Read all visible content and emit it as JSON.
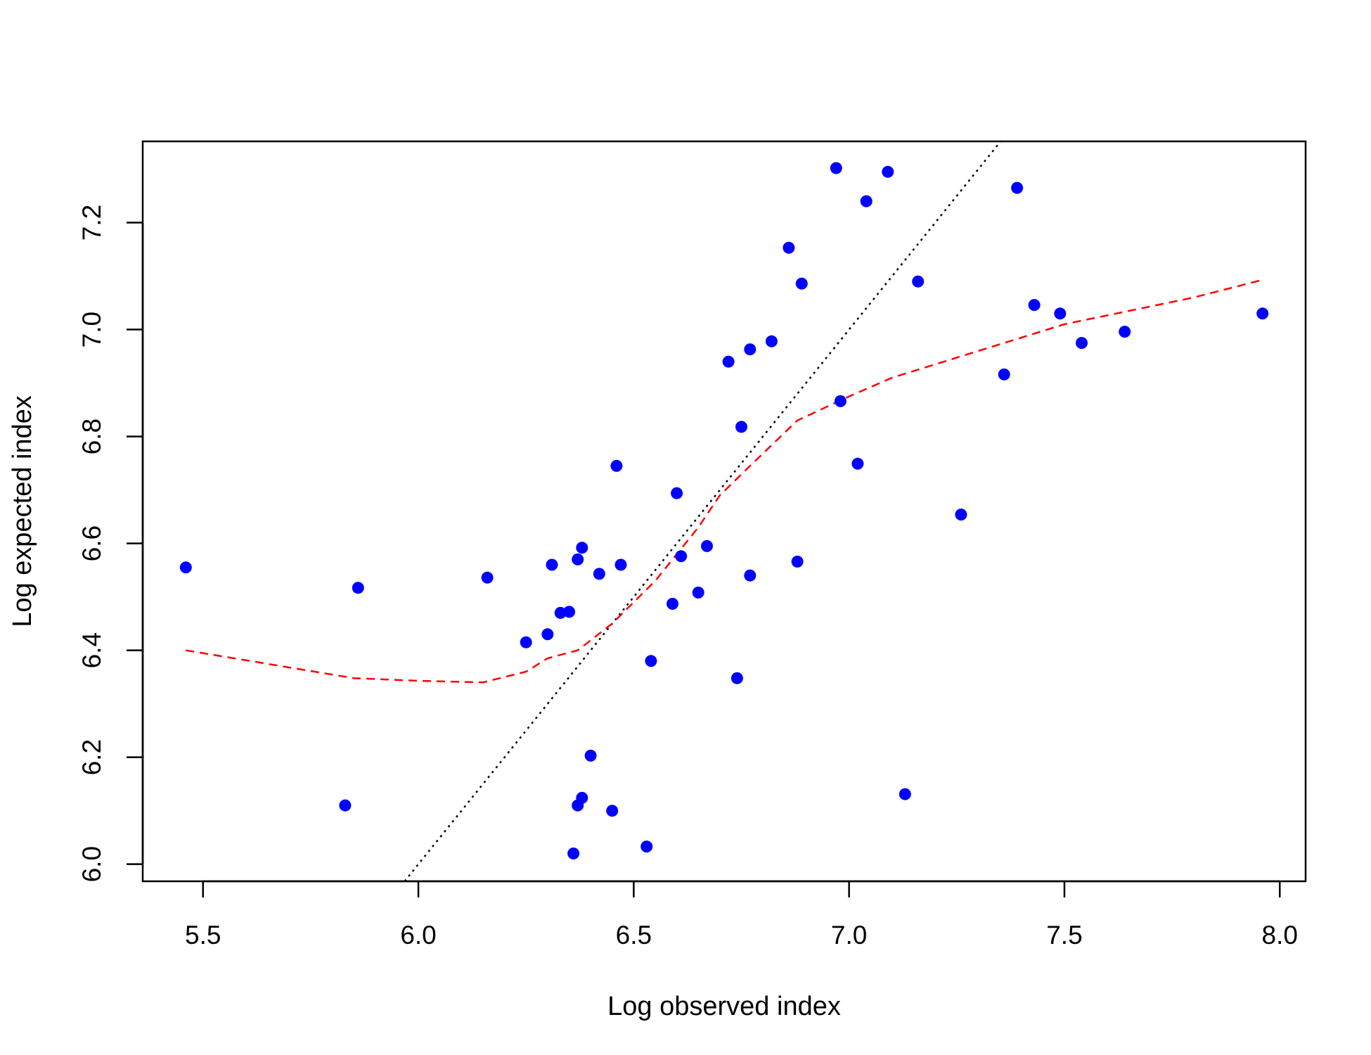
{
  "chart_data": {
    "type": "scatter",
    "title": "",
    "xlabel": "Log observed index",
    "ylabel": "Log expected index",
    "xlim": [
      5.36,
      8.06
    ],
    "ylim": [
      5.968,
      7.352
    ],
    "x_ticks": [
      5.5,
      6.0,
      6.5,
      7.0,
      7.5,
      8.0
    ],
    "x_tick_labels": [
      "5.5",
      "6.0",
      "6.5",
      "7.0",
      "7.5",
      "8.0"
    ],
    "y_ticks": [
      6.0,
      6.2,
      6.4,
      6.6,
      6.8,
      7.0,
      7.2
    ],
    "y_tick_labels": [
      "6.0",
      "6.2",
      "6.4",
      "6.6",
      "6.8",
      "7.0",
      "7.2"
    ],
    "grid": false,
    "colors": {
      "points": "#0000ff",
      "smooth": "#ff0000",
      "reference": "#000000"
    },
    "series": [
      {
        "kind": "points",
        "points": [
          [
            5.46,
            6.555
          ],
          [
            5.83,
            6.11
          ],
          [
            5.86,
            6.517
          ],
          [
            6.16,
            6.536
          ],
          [
            6.25,
            6.415
          ],
          [
            6.3,
            6.43
          ],
          [
            6.31,
            6.56
          ],
          [
            6.33,
            6.47
          ],
          [
            6.35,
            6.472
          ],
          [
            6.36,
            6.02
          ],
          [
            6.37,
            6.11
          ],
          [
            6.37,
            6.57
          ],
          [
            6.38,
            6.124
          ],
          [
            6.38,
            6.592
          ],
          [
            6.4,
            6.203
          ],
          [
            6.42,
            6.543
          ],
          [
            6.45,
            6.1
          ],
          [
            6.46,
            6.745
          ],
          [
            6.47,
            6.56
          ],
          [
            6.53,
            6.033
          ],
          [
            6.54,
            6.38
          ],
          [
            6.59,
            6.487
          ],
          [
            6.6,
            6.694
          ],
          [
            6.61,
            6.576
          ],
          [
            6.65,
            6.508
          ],
          [
            6.67,
            6.595
          ],
          [
            6.72,
            6.94
          ],
          [
            6.74,
            6.348
          ],
          [
            6.75,
            6.818
          ],
          [
            6.77,
            6.54
          ],
          [
            6.77,
            6.963
          ],
          [
            6.82,
            6.978
          ],
          [
            6.86,
            7.153
          ],
          [
            6.88,
            6.566
          ],
          [
            6.89,
            7.086
          ],
          [
            6.97,
            7.302
          ],
          [
            6.98,
            6.866
          ],
          [
            7.02,
            6.749
          ],
          [
            7.04,
            7.24
          ],
          [
            7.09,
            7.295
          ],
          [
            7.13,
            6.131
          ],
          [
            7.16,
            7.09
          ],
          [
            7.26,
            6.654
          ],
          [
            7.36,
            6.916
          ],
          [
            7.39,
            7.265
          ],
          [
            7.43,
            7.046
          ],
          [
            7.49,
            7.03
          ],
          [
            7.54,
            6.975
          ],
          [
            7.64,
            6.996
          ],
          [
            7.96,
            7.03
          ]
        ]
      },
      {
        "kind": "smooth",
        "points": [
          [
            5.46,
            6.4
          ],
          [
            5.85,
            6.348
          ],
          [
            6.0,
            6.343
          ],
          [
            6.15,
            6.34
          ],
          [
            6.25,
            6.36
          ],
          [
            6.3,
            6.385
          ],
          [
            6.37,
            6.4
          ],
          [
            6.45,
            6.45
          ],
          [
            6.55,
            6.53
          ],
          [
            6.65,
            6.63
          ],
          [
            6.7,
            6.69
          ],
          [
            6.77,
            6.745
          ],
          [
            6.88,
            6.83
          ],
          [
            7.0,
            6.875
          ],
          [
            7.1,
            6.91
          ],
          [
            7.2,
            6.935
          ],
          [
            7.3,
            6.96
          ],
          [
            7.4,
            6.985
          ],
          [
            7.5,
            7.01
          ],
          [
            7.65,
            7.035
          ],
          [
            7.8,
            7.06
          ],
          [
            7.96,
            7.093
          ]
        ]
      },
      {
        "kind": "reference",
        "points": [
          [
            5.968,
            5.968
          ],
          [
            7.352,
            7.352
          ]
        ]
      }
    ]
  }
}
